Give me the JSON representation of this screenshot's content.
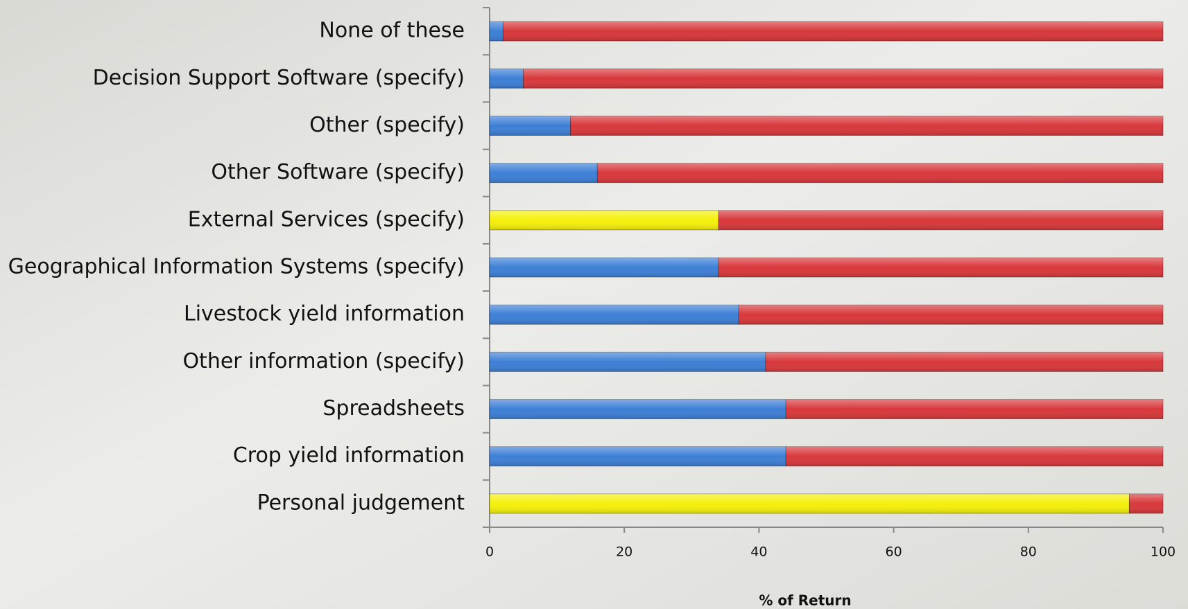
{
  "chart_data": {
    "type": "stacked-bar-horizontal",
    "x_label": "% of Return",
    "categories": [
      "None of these",
      "Decision Support Software (specify)",
      "Other (specify)",
      "Other Software (specify)",
      "External Services (specify)",
      "Geographical Information Systems (specify)",
      "Livestock yield information",
      "Other information (specify)",
      "Spreadsheets",
      "Crop yield information",
      "Personal judgement"
    ],
    "series": [
      {
        "colors": [
          "#3d7fd6",
          "#3d7fd6",
          "#3d7fd6",
          "#3d7fd6",
          "#f5f00a",
          "#3d7fd6",
          "#3d7fd6",
          "#3d7fd6",
          "#3d7fd6",
          "#3d7fd6",
          "#f5f00a"
        ],
        "values": [
          2,
          5,
          12,
          16,
          34,
          34,
          37,
          41,
          44,
          44,
          95
        ]
      },
      {
        "color": "#d8383b",
        "values": [
          98,
          95,
          88,
          84,
          66,
          66,
          63,
          59,
          56,
          56,
          5
        ]
      }
    ],
    "xlim": [
      0,
      100
    ],
    "xticks": [
      0,
      20,
      40,
      60,
      80,
      100
    ]
  }
}
